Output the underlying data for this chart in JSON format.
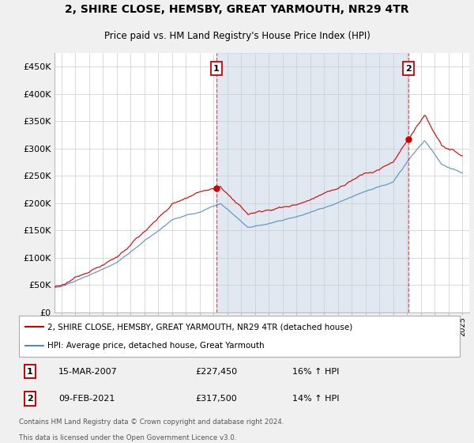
{
  "title1": "2, SHIRE CLOSE, HEMSBY, GREAT YARMOUTH, NR29 4TR",
  "title2": "Price paid vs. HM Land Registry's House Price Index (HPI)",
  "ylabel_ticks": [
    "£0",
    "£50K",
    "£100K",
    "£150K",
    "£200K",
    "£250K",
    "£300K",
    "£350K",
    "£400K",
    "£450K"
  ],
  "ytick_values": [
    0,
    50000,
    100000,
    150000,
    200000,
    250000,
    300000,
    350000,
    400000,
    450000
  ],
  "ylim": [
    0,
    475000
  ],
  "xlim_start": 1995.5,
  "xlim_end": 2025.5,
  "sale1_x": 2007.2,
  "sale1_y": 227450,
  "sale1_label": "1",
  "sale2_x": 2021.1,
  "sale2_y": 317500,
  "sale2_label": "2",
  "legend_line1": "2, SHIRE CLOSE, HEMSBY, GREAT YARMOUTH, NR29 4TR (detached house)",
  "legend_line2": "HPI: Average price, detached house, Great Yarmouth",
  "table_row1": [
    "1",
    "15-MAR-2007",
    "£227,450",
    "16% ↑ HPI"
  ],
  "table_row2": [
    "2",
    "09-FEB-2021",
    "£317,500",
    "14% ↑ HPI"
  ],
  "footnote1": "Contains HM Land Registry data © Crown copyright and database right 2024.",
  "footnote2": "This data is licensed under the Open Government Licence v3.0.",
  "red_color": "#cc0000",
  "blue_color": "#5588bb",
  "blue_fill": "#ddeeff",
  "bg_color": "#f0f0f0",
  "plot_bg": "#ffffff",
  "grid_color": "#cccccc"
}
